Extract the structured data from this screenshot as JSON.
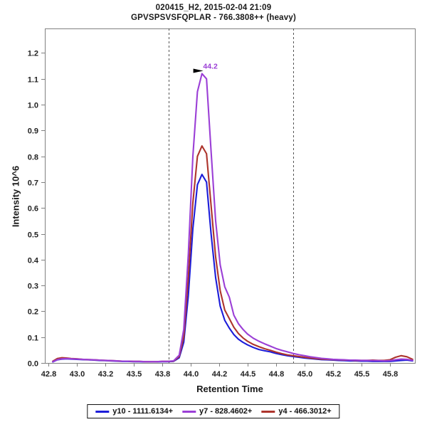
{
  "window": {
    "title_line1": "020415_H2, 2015-02-04 21:09",
    "title_line2": "GPVSPSVSFQPLAR - 766.3808++ (heavy)"
  },
  "axes": {
    "x_label": "Retention Time",
    "y_label": "Intensity 10^6",
    "x_ticks": [
      {
        "value": 42.75,
        "label": "42.8"
      },
      {
        "value": 43.0,
        "label": "43.0"
      },
      {
        "value": 43.25,
        "label": "43.2"
      },
      {
        "value": 43.5,
        "label": "43.5"
      },
      {
        "value": 43.75,
        "label": "43.8"
      },
      {
        "value": 44.0,
        "label": "44.0"
      },
      {
        "value": 44.25,
        "label": "44.2"
      },
      {
        "value": 44.5,
        "label": "44.5"
      },
      {
        "value": 44.75,
        "label": "44.8"
      },
      {
        "value": 45.0,
        "label": "45.0"
      },
      {
        "value": 45.25,
        "label": "45.2"
      },
      {
        "value": 45.5,
        "label": "45.5"
      },
      {
        "value": 45.75,
        "label": "45.8"
      }
    ],
    "y_ticks": [
      {
        "value": 0.0,
        "label": "0.0"
      },
      {
        "value": 0.1,
        "label": "0.1"
      },
      {
        "value": 0.2,
        "label": "0.2"
      },
      {
        "value": 0.3,
        "label": "0.3"
      },
      {
        "value": 0.4,
        "label": "0.4"
      },
      {
        "value": 0.5,
        "label": "0.5"
      },
      {
        "value": 0.6,
        "label": "0.6"
      },
      {
        "value": 0.7,
        "label": "0.7"
      },
      {
        "value": 0.8,
        "label": "0.8"
      },
      {
        "value": 0.9,
        "label": "0.9"
      },
      {
        "value": 1.0,
        "label": "1.0"
      },
      {
        "value": 1.1,
        "label": "1.1"
      },
      {
        "value": 1.2,
        "label": "1.2"
      }
    ]
  },
  "colors": {
    "axis": "#808080",
    "tick_text": "#222222",
    "boundary_line": "#555555",
    "annotation_arrow": "#000000"
  },
  "chart_data": {
    "type": "line",
    "title": "020415_H2, 2015-02-04 21:09",
    "subtitle": "GPVSPSVSFQPLAR - 766.3808++ (heavy)",
    "xlabel": "Retention Time",
    "ylabel": "Intensity 10^6",
    "x_range": [
      42.72,
      45.97
    ],
    "y_range": [
      0,
      1.295
    ],
    "grid": false,
    "legend_position": "bottom",
    "integration_boundaries": [
      43.81,
      44.9
    ],
    "peak_annotation": {
      "text": "44.2",
      "rt": 44.105,
      "intensity": 1.12
    },
    "x": [
      42.79,
      42.83,
      42.87,
      42.91,
      42.95,
      43.0,
      43.05,
      43.1,
      43.15,
      43.2,
      43.25,
      43.3,
      43.35,
      43.4,
      43.45,
      43.5,
      43.55,
      43.6,
      43.65,
      43.7,
      43.75,
      43.8,
      43.85,
      43.9,
      43.94,
      43.98,
      44.02,
      44.06,
      44.1,
      44.14,
      44.18,
      44.22,
      44.26,
      44.3,
      44.34,
      44.38,
      44.42,
      44.46,
      44.5,
      44.55,
      44.6,
      44.65,
      44.7,
      44.75,
      44.8,
      44.85,
      44.9,
      44.95,
      45.0,
      45.05,
      45.1,
      45.15,
      45.2,
      45.25,
      45.3,
      45.35,
      45.4,
      45.45,
      45.5,
      45.55,
      45.6,
      45.65,
      45.7,
      45.75,
      45.8,
      45.85,
      45.9,
      45.95
    ],
    "series": [
      {
        "name": "y10 - 1111.6134+",
        "color": "#1c1cd9",
        "values": [
          0.004,
          0.012,
          0.015,
          0.016,
          0.015,
          0.014,
          0.013,
          0.012,
          0.011,
          0.01,
          0.009,
          0.008,
          0.007,
          0.006,
          0.006,
          0.005,
          0.005,
          0.004,
          0.004,
          0.004,
          0.005,
          0.005,
          0.006,
          0.02,
          0.08,
          0.26,
          0.52,
          0.69,
          0.73,
          0.7,
          0.5,
          0.33,
          0.22,
          0.165,
          0.135,
          0.11,
          0.092,
          0.08,
          0.07,
          0.06,
          0.052,
          0.047,
          0.043,
          0.037,
          0.032,
          0.028,
          0.025,
          0.022,
          0.019,
          0.017,
          0.015,
          0.013,
          0.012,
          0.011,
          0.01,
          0.009,
          0.008,
          0.008,
          0.007,
          0.007,
          0.006,
          0.006,
          0.006,
          0.006,
          0.008,
          0.01,
          0.011,
          0.008
        ]
      },
      {
        "name": "y7 - 828.4602+",
        "color": "#9b3fd6",
        "values": [
          0.005,
          0.013,
          0.016,
          0.017,
          0.016,
          0.015,
          0.014,
          0.013,
          0.012,
          0.011,
          0.01,
          0.009,
          0.008,
          0.007,
          0.007,
          0.006,
          0.006,
          0.005,
          0.005,
          0.005,
          0.006,
          0.006,
          0.008,
          0.03,
          0.13,
          0.42,
          0.8,
          1.05,
          1.12,
          1.1,
          0.82,
          0.55,
          0.38,
          0.295,
          0.255,
          0.185,
          0.152,
          0.13,
          0.112,
          0.096,
          0.084,
          0.074,
          0.065,
          0.056,
          0.049,
          0.043,
          0.037,
          0.032,
          0.028,
          0.024,
          0.021,
          0.018,
          0.016,
          0.014,
          0.013,
          0.012,
          0.011,
          0.011,
          0.01,
          0.01,
          0.009,
          0.009,
          0.008,
          0.009,
          0.012,
          0.015,
          0.014,
          0.01
        ]
      },
      {
        "name": "y4 - 466.3012+",
        "color": "#ad342c",
        "values": [
          0.007,
          0.017,
          0.02,
          0.019,
          0.017,
          0.016,
          0.014,
          0.013,
          0.012,
          0.011,
          0.01,
          0.009,
          0.008,
          0.007,
          0.007,
          0.006,
          0.006,
          0.005,
          0.005,
          0.005,
          0.006,
          0.006,
          0.007,
          0.025,
          0.1,
          0.33,
          0.62,
          0.8,
          0.84,
          0.81,
          0.61,
          0.41,
          0.28,
          0.205,
          0.172,
          0.138,
          0.114,
          0.097,
          0.084,
          0.072,
          0.063,
          0.055,
          0.049,
          0.042,
          0.036,
          0.031,
          0.028,
          0.025,
          0.022,
          0.019,
          0.017,
          0.015,
          0.014,
          0.013,
          0.012,
          0.011,
          0.011,
          0.01,
          0.01,
          0.01,
          0.011,
          0.01,
          0.01,
          0.012,
          0.022,
          0.028,
          0.024,
          0.014
        ]
      }
    ]
  }
}
